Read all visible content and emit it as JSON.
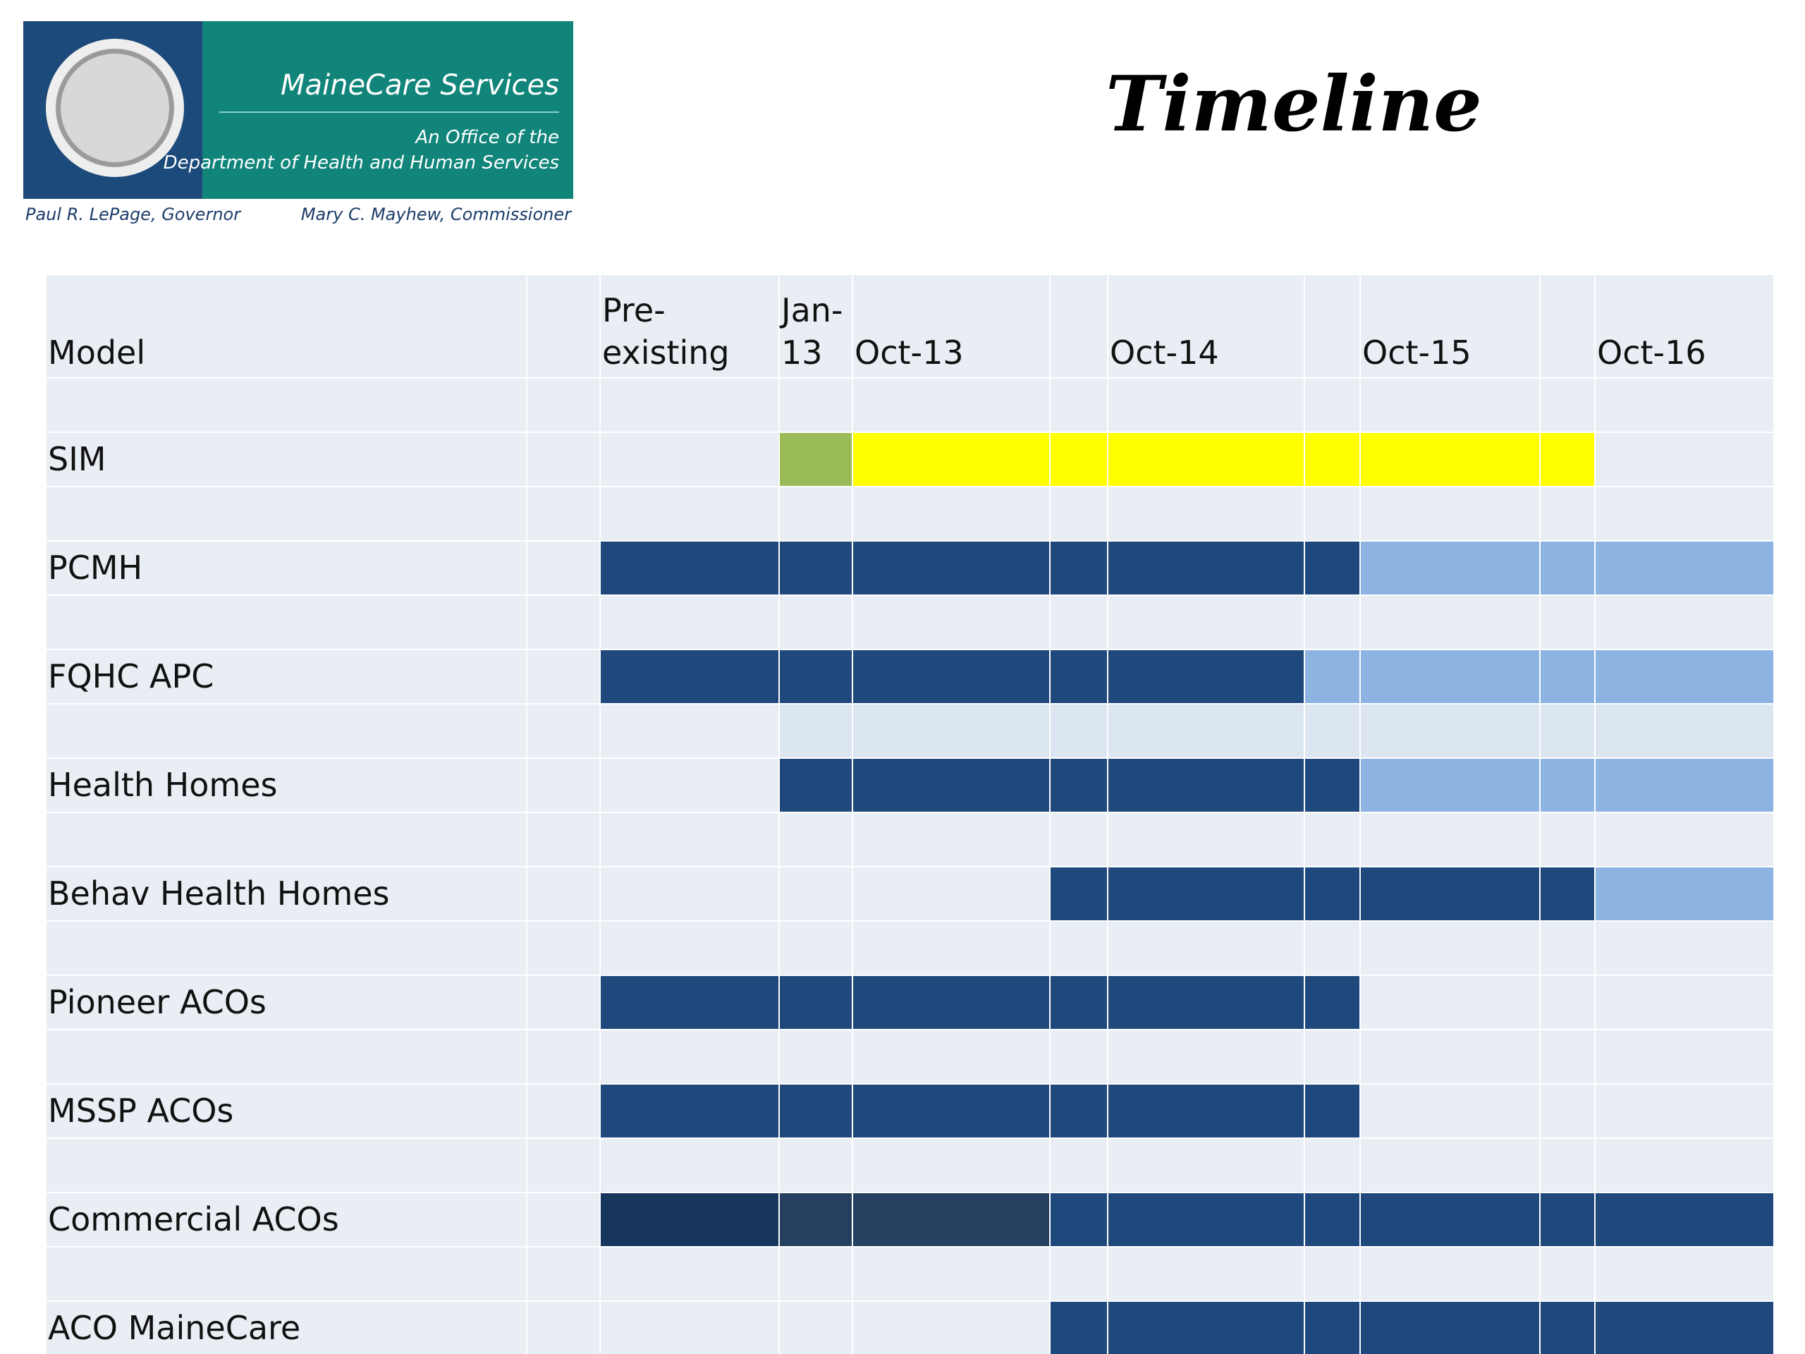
{
  "logo": {
    "title": "MaineCare Services",
    "subtitle_1": "An Office of the",
    "subtitle_2": "Department of Health and Human Services",
    "governor": "Paul R. LePage, Governor",
    "commissioner": "Mary C. Mayhew, Commissioner"
  },
  "title": "Timeline",
  "table": {
    "header": [
      "Model",
      null,
      "Pre-existing",
      "Jan-13",
      "Oct-13",
      null,
      "Oct-14",
      null,
      "Oct-15",
      null,
      "Oct-16"
    ],
    "default_color": "#e9edf4",
    "rows": [
      {
        "cells": [
          null,
          null,
          null,
          null,
          null,
          null,
          null,
          null,
          null,
          null
        ]
      },
      {
        "label": "SIM",
        "cells": [
          null,
          null,
          "#9bbb59",
          "#ffff00",
          "#ffff00",
          "#ffff00",
          "#ffff00",
          "#ffff00",
          "#ffff00",
          null
        ]
      },
      {
        "cells": [
          null,
          null,
          null,
          null,
          null,
          null,
          null,
          null,
          null,
          null
        ]
      },
      {
        "label": "PCMH",
        "cells": [
          null,
          "#1f497d",
          "#1f497d",
          "#1f497d",
          "#1f497d",
          "#1f497d",
          "#1f497d",
          "#8db3e2",
          "#8db3e2",
          "#8db3e2"
        ]
      },
      {
        "cells": [
          null,
          null,
          null,
          null,
          null,
          null,
          null,
          null,
          null,
          null
        ]
      },
      {
        "label": "FQHC APC",
        "cells": [
          null,
          "#1f497d",
          "#1f497d",
          "#1f497d",
          "#1f497d",
          "#1f497d",
          "#8db3e2",
          "#8db3e2",
          "#8db3e2",
          "#8db3e2"
        ]
      },
      {
        "cells": [
          null,
          null,
          "#dce6f1",
          "#dce6f1",
          "#dce6f1",
          "#dce6f1",
          "#dce6f1",
          "#dce6f1",
          "#dce6f1",
          "#dce6f1"
        ]
      },
      {
        "label": "Health Homes",
        "cells": [
          null,
          null,
          "#1f497d",
          "#1f497d",
          "#1f497d",
          "#1f497d",
          "#1f497d",
          "#8db3e2",
          "#8db3e2",
          "#8db3e2"
        ]
      },
      {
        "cells": [
          null,
          null,
          null,
          null,
          null,
          null,
          null,
          null,
          null,
          null
        ]
      },
      {
        "label": "Behav Health Homes",
        "cells": [
          null,
          null,
          null,
          null,
          "#1f497d",
          "#1f497d",
          "#1f497d",
          "#1f497d",
          "#1f497d",
          "#8db3e2"
        ]
      },
      {
        "cells": [
          null,
          null,
          null,
          null,
          null,
          null,
          null,
          null,
          null,
          null
        ]
      },
      {
        "label": "Pioneer ACOs",
        "cells": [
          null,
          "#1f497d",
          "#1f497d",
          "#1f497d",
          "#1f497d",
          "#1f497d",
          "#1f497d",
          null,
          null,
          null
        ]
      },
      {
        "cells": [
          null,
          null,
          null,
          null,
          null,
          null,
          null,
          null,
          null,
          null
        ]
      },
      {
        "label": "MSSP ACOs",
        "cells": [
          null,
          "#1f497d",
          "#1f497d",
          "#1f497d",
          "#1f497d",
          "#1f497d",
          "#1f497d",
          null,
          null,
          null
        ]
      },
      {
        "cells": [
          null,
          null,
          null,
          null,
          null,
          null,
          null,
          null,
          null,
          null
        ]
      },
      {
        "label": "Commercial ACOs",
        "cells": [
          null,
          "#17365d",
          "#243f60",
          "#243f60",
          "#1f497d",
          "#1f497d",
          "#1f497d",
          "#1f497d",
          "#1f497d",
          "#1f497d"
        ]
      },
      {
        "cells": [
          null,
          null,
          null,
          null,
          null,
          null,
          null,
          null,
          null,
          null
        ]
      },
      {
        "label": "ACO MaineCare",
        "cells": [
          null,
          null,
          null,
          null,
          "#1f497d",
          "#1f497d",
          "#1f497d",
          "#1f497d",
          "#1f497d",
          "#1f497d"
        ]
      }
    ]
  }
}
